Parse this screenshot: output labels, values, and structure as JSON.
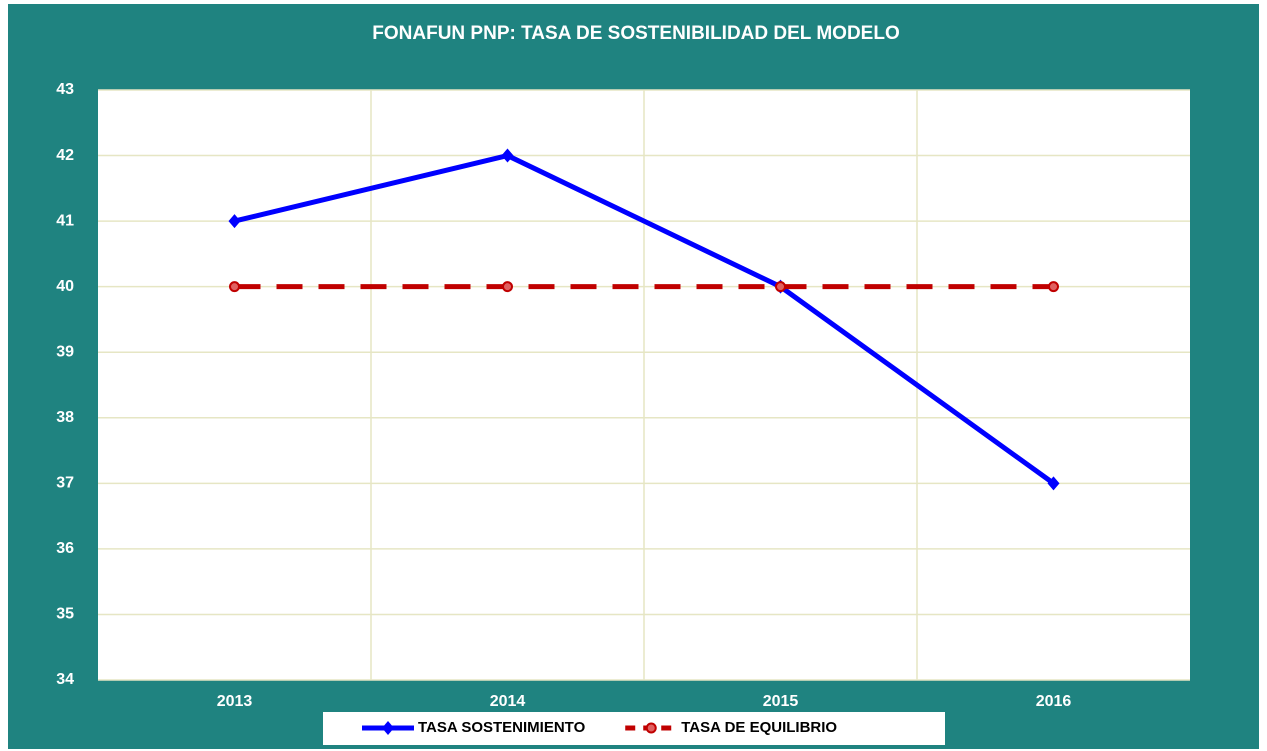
{
  "chart_data": {
    "type": "line",
    "title": "FONAFUN PNP: TASA DE SOSTENIBILIDAD DEL MODELO",
    "categories": [
      "2013",
      "2014",
      "2015",
      "2016"
    ],
    "series": [
      {
        "name": "TASA SOSTENIMIENTO",
        "color": "#0000ff",
        "marker": "diamond",
        "dash": false,
        "values": [
          41,
          42,
          40,
          37
        ]
      },
      {
        "name": "TASA DE EQUILIBRIO",
        "color": "#c00000",
        "marker": "circle",
        "dash": true,
        "values": [
          40,
          40,
          40,
          40
        ]
      }
    ],
    "ylim": [
      34,
      43
    ],
    "yticks": [
      34,
      35,
      36,
      37,
      38,
      39,
      40,
      41,
      42,
      43
    ],
    "grid": true,
    "legend": "bottom"
  }
}
